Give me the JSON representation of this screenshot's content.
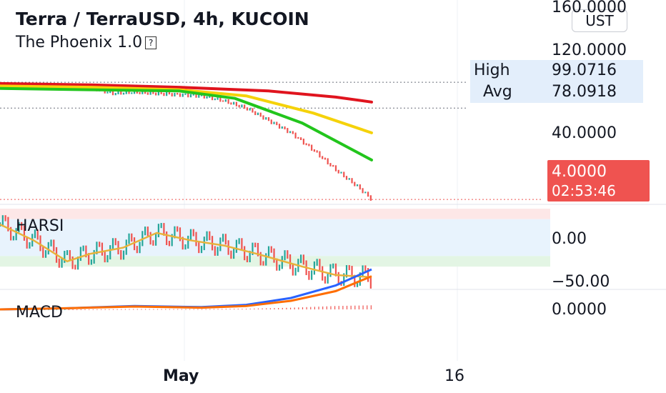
{
  "header": {
    "symbol_title": "Terra / TerraUSD, 4h, KUCOIN",
    "indicator_name": "The Phoenix 1.0",
    "indicator_info_icon": "question-mark-icon"
  },
  "price_scale": {
    "unit": "UST",
    "labels": [
      "160.0000",
      "120.0000",
      "40.0000"
    ],
    "high_label": "High",
    "high_value": "99.0716",
    "avg_label": "Avg",
    "avg_value": "78.0918",
    "last_price": "4.0000",
    "countdown": "02:53:46"
  },
  "harsi": {
    "label": "HARSI",
    "scale_labels": [
      "0.00",
      "−50.00"
    ]
  },
  "macd": {
    "label": "MACD",
    "scale_labels": [
      "0.0000"
    ]
  },
  "time_axis": {
    "labels": [
      "May",
      "16"
    ]
  },
  "colors": {
    "up": "#26a69a",
    "down": "#ef5350",
    "ema_red": "#e0141e",
    "ema_yellow": "#f5d20a",
    "ema_green": "#22c51c",
    "macd_blue": "#2962ff",
    "macd_orange": "#ff6d00"
  },
  "chart_data": {
    "type": "line",
    "title": "Terra / TerraUSD, 4h, KUCOIN",
    "price_ylim": [
      0,
      160
    ],
    "price_unit": "UST",
    "high": 99.0716,
    "avg": 78.0918,
    "last": 4.0,
    "price_series": [
      {
        "x": 0,
        "close": 97
      },
      {
        "x": 10,
        "close": 96
      },
      {
        "x": 20,
        "close": 97
      },
      {
        "x": 30,
        "close": 96
      },
      {
        "x": 40,
        "close": 95
      },
      {
        "x": 50,
        "close": 90
      },
      {
        "x": 60,
        "close": 91
      },
      {
        "x": 70,
        "close": 90
      },
      {
        "x": 80,
        "close": 89
      },
      {
        "x": 90,
        "close": 88
      },
      {
        "x": 100,
        "close": 84
      },
      {
        "x": 110,
        "close": 78
      },
      {
        "x": 120,
        "close": 68
      },
      {
        "x": 130,
        "close": 58
      },
      {
        "x": 140,
        "close": 44
      },
      {
        "x": 150,
        "close": 28
      },
      {
        "x": 160,
        "close": 14
      },
      {
        "x": 166,
        "close": 4
      }
    ],
    "series": [
      {
        "values": [
          [
            0,
            98
          ],
          [
            40,
            97
          ],
          [
            80,
            95
          ],
          [
            120,
            92
          ],
          [
            150,
            87
          ],
          [
            166,
            83
          ]
        ]
      },
      {
        "values": [
          [
            0,
            96
          ],
          [
            40,
            95
          ],
          [
            80,
            93
          ],
          [
            110,
            88
          ],
          [
            140,
            74
          ],
          [
            166,
            58
          ]
        ]
      },
      {
        "values": [
          [
            0,
            94
          ],
          [
            40,
            93
          ],
          [
            80,
            92
          ],
          [
            105,
            86
          ],
          [
            135,
            66
          ],
          [
            166,
            36
          ]
        ]
      }
    ],
    "harsi": {
      "ylim": [
        -55,
        25
      ],
      "bands": {
        "overbought": [
          15,
          25
        ],
        "oversold": [
          -30,
          -20
        ]
      },
      "smoothed": [
        [
          0,
          10
        ],
        [
          15,
          -5
        ],
        [
          30,
          -25
        ],
        [
          40,
          -18
        ],
        [
          55,
          -12
        ],
        [
          70,
          2
        ],
        [
          85,
          -5
        ],
        [
          100,
          -10
        ],
        [
          115,
          -18
        ],
        [
          135,
          -30
        ],
        [
          150,
          -38
        ],
        [
          166,
          -40
        ]
      ]
    },
    "macd": {
      "macd_line": [
        [
          0,
          0
        ],
        [
          30,
          -2
        ],
        [
          60,
          -6
        ],
        [
          90,
          -4
        ],
        [
          110,
          -8
        ],
        [
          130,
          -20
        ],
        [
          150,
          -42
        ],
        [
          166,
          -70
        ]
      ],
      "signal_line": [
        [
          0,
          0
        ],
        [
          30,
          -2
        ],
        [
          60,
          -5
        ],
        [
          90,
          -3
        ],
        [
          110,
          -6
        ],
        [
          130,
          -15
        ],
        [
          150,
          -32
        ],
        [
          166,
          -58
        ]
      ]
    },
    "x_tick_labels": [
      "May",
      "16"
    ]
  }
}
